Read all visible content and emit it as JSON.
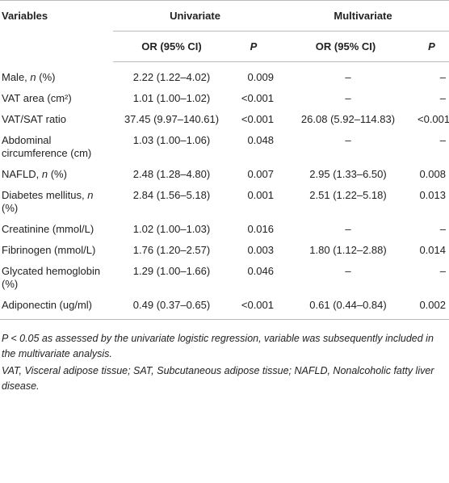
{
  "table": {
    "header": [
      "Variables",
      "Univariate",
      "Multivariate"
    ],
    "subheader": [
      "OR (95% CI)",
      "P",
      "OR (95% CI)",
      "P"
    ],
    "rows": [
      {
        "variable": [
          "Male, ",
          "n",
          " (%)"
        ],
        "cells": [
          "2.22 (1.22–4.02)",
          "0.009",
          "–",
          "–"
        ]
      },
      {
        "variable": [
          "VAT area (cm²)"
        ],
        "cells": [
          "1.01 (1.00–1.02)",
          "<0.001",
          "–",
          "–"
        ]
      },
      {
        "variable": [
          "VAT/SAT ratio"
        ],
        "cells": [
          "37.45 (9.97–140.61)",
          "<0.001",
          "26.08 (5.92–114.83)",
          "<0.001"
        ]
      },
      {
        "variable": [
          "Abdominal circumference (cm)"
        ],
        "cells": [
          "1.03 (1.00–1.06)",
          "0.048",
          "–",
          "–"
        ]
      },
      {
        "variable": [
          "NAFLD, ",
          "n",
          " (%)"
        ],
        "cells": [
          "2.48 (1.28–4.80)",
          "0.007",
          "2.95 (1.33–6.50)",
          "0.008"
        ]
      },
      {
        "variable": [
          "Diabetes mellitus, ",
          "n",
          " (%)"
        ],
        "cells": [
          "2.84 (1.56–5.18)",
          "0.001",
          "2.51 (1.22–5.18)",
          "0.013"
        ]
      },
      {
        "variable": [
          "Creatinine (mmol/L)"
        ],
        "cells": [
          "1.02 (1.00–1.03)",
          "0.016",
          "–",
          "–"
        ]
      },
      {
        "variable": [
          "Fibrinogen (mmol/L)"
        ],
        "cells": [
          "1.76 (1.20–2.57)",
          "0.003",
          "1.80 (1.12–2.88)",
          "0.014"
        ]
      },
      {
        "variable": [
          "Glycated hemoglobin (%)"
        ],
        "cells": [
          "1.29 (1.00–1.66)",
          "0.046",
          "–",
          "–"
        ]
      },
      {
        "variable": [
          "Adiponectin (ug/ml)"
        ],
        "cells": [
          "0.49 (0.37–0.65)",
          "<0.001",
          "0.61 (0.44–0.84)",
          "0.002"
        ]
      }
    ],
    "footnotes": [
      "P < 0.05 as assessed by the univariate logistic regression, variable was subsequently included in the multivariate analysis.",
      "VAT, Visceral adipose tissue; SAT, Subcutaneous adipose tissue; NAFLD, Nonalcoholic fatty liver disease."
    ]
  }
}
